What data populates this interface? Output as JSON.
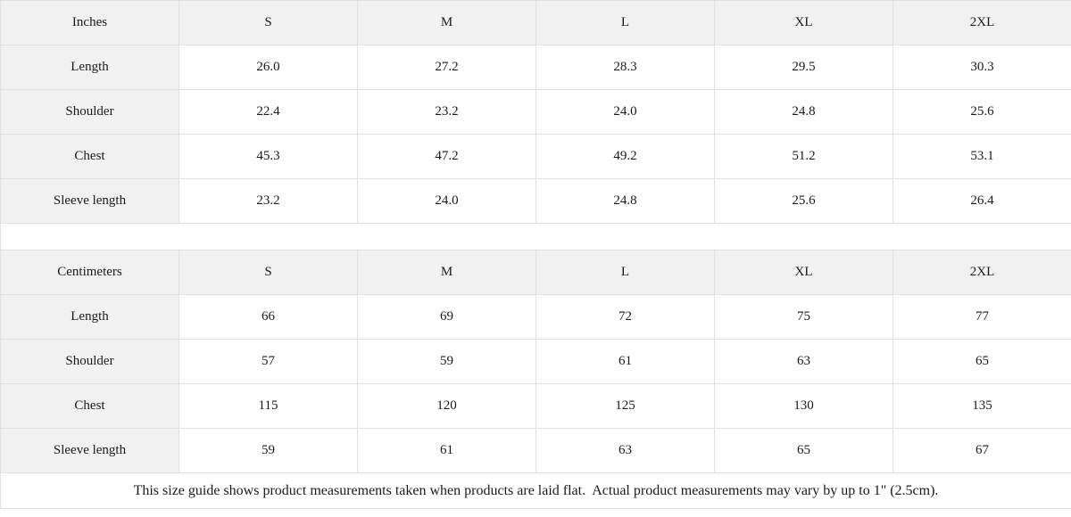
{
  "colors": {
    "label_cell_bg": "#f1f1f1",
    "border": "#e0e0e0",
    "text": "#1a1a1a",
    "data_cell_bg": "#ffffff"
  },
  "tables": [
    {
      "unit": "Inches",
      "columns": [
        "S",
        "M",
        "L",
        "XL",
        "2XL"
      ],
      "rows": [
        {
          "label": "Length",
          "values": [
            "26.0",
            "27.2",
            "28.3",
            "29.5",
            "30.3"
          ]
        },
        {
          "label": "Shoulder",
          "values": [
            "22.4",
            "23.2",
            "24.0",
            "24.8",
            "25.6"
          ]
        },
        {
          "label": "Chest",
          "values": [
            "45.3",
            "47.2",
            "49.2",
            "51.2",
            "53.1"
          ]
        },
        {
          "label": "Sleeve length",
          "values": [
            "23.2",
            "24.0",
            "24.8",
            "25.6",
            "26.4"
          ]
        }
      ]
    },
    {
      "unit": "Centimeters",
      "columns": [
        "S",
        "M",
        "L",
        "XL",
        "2XL"
      ],
      "rows": [
        {
          "label": "Length",
          "values": [
            "66",
            "69",
            "72",
            "75",
            "77"
          ]
        },
        {
          "label": "Shoulder",
          "values": [
            "57",
            "59",
            "61",
            "63",
            "65"
          ]
        },
        {
          "label": "Chest",
          "values": [
            "115",
            "120",
            "125",
            "130",
            "135"
          ]
        },
        {
          "label": "Sleeve length",
          "values": [
            "59",
            "61",
            "63",
            "65",
            "67"
          ]
        }
      ]
    }
  ],
  "footer": {
    "note": "This size guide shows product measurements taken when products are laid flat.  Actual product measurements may vary by up to 1\" (2.5cm)."
  },
  "chart_data": [
    {
      "type": "table",
      "title": "Inches",
      "columns": [
        "S",
        "M",
        "L",
        "XL",
        "2XL"
      ],
      "rows": [
        {
          "label": "Length",
          "values": [
            26.0,
            27.2,
            28.3,
            29.5,
            30.3
          ]
        },
        {
          "label": "Shoulder",
          "values": [
            22.4,
            23.2,
            24.0,
            24.8,
            25.6
          ]
        },
        {
          "label": "Chest",
          "values": [
            45.3,
            47.2,
            49.2,
            51.2,
            53.1
          ]
        },
        {
          "label": "Sleeve length",
          "values": [
            23.2,
            24.0,
            24.8,
            25.6,
            26.4
          ]
        }
      ]
    },
    {
      "type": "table",
      "title": "Centimeters",
      "columns": [
        "S",
        "M",
        "L",
        "XL",
        "2XL"
      ],
      "rows": [
        {
          "label": "Length",
          "values": [
            66,
            69,
            72,
            75,
            77
          ]
        },
        {
          "label": "Shoulder",
          "values": [
            57,
            59,
            61,
            63,
            65
          ]
        },
        {
          "label": "Chest",
          "values": [
            115,
            120,
            125,
            130,
            135
          ]
        },
        {
          "label": "Sleeve length",
          "values": [
            59,
            61,
            63,
            65,
            67
          ]
        }
      ]
    }
  ]
}
